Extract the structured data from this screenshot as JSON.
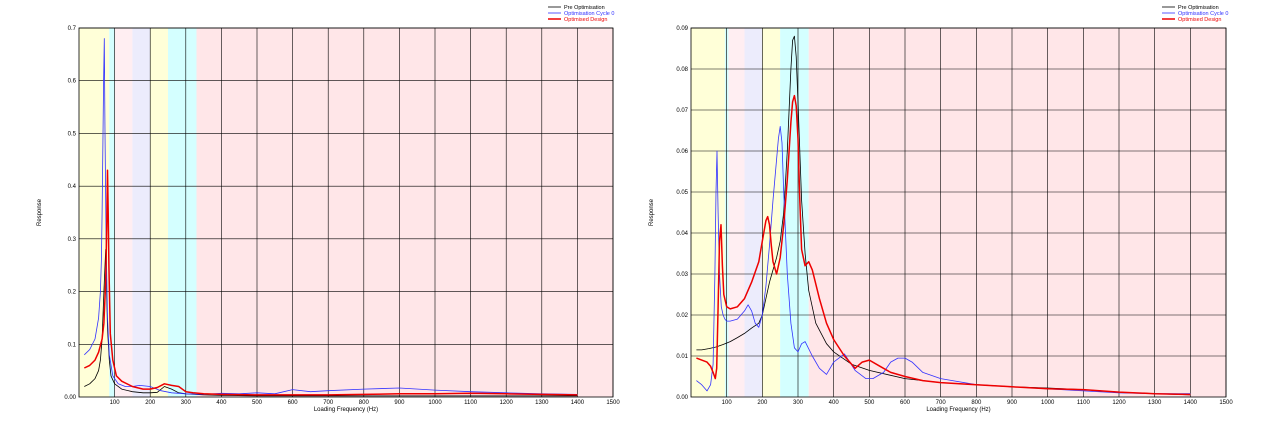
{
  "chart_data": [
    {
      "type": "line",
      "xlabel": "Loading Frequency (Hz)",
      "ylabel": "Response",
      "xlim": [
        0,
        1500
      ],
      "ylim": [
        0,
        0.7
      ],
      "xticks": [
        "100",
        "200",
        "300",
        "400",
        "500",
        "600",
        "700",
        "800",
        "900",
        "1000",
        "1100",
        "1200",
        "1300",
        "1400",
        "1500"
      ],
      "yticks": [
        "0.00",
        "0.1",
        "0.2",
        "0.3",
        "0.4",
        "0.5",
        "0.6",
        "0.7"
      ],
      "grid": true,
      "legend_position": "top-right",
      "bands": [
        {
          "from": 0,
          "to": 85,
          "color": "#ffffd8"
        },
        {
          "from": 85,
          "to": 100,
          "color": "#d4ffff"
        },
        {
          "from": 100,
          "to": 150,
          "color": "#ffeef2"
        },
        {
          "from": 150,
          "to": 200,
          "color": "#ececfc"
        },
        {
          "from": 200,
          "to": 250,
          "color": "#ffffd8"
        },
        {
          "from": 250,
          "to": 300,
          "color": "#d4ffff"
        },
        {
          "from": 300,
          "to": 330,
          "color": "#d4ffff"
        },
        {
          "from": 330,
          "to": 1500,
          "color": "#ffe6e8"
        }
      ],
      "series": [
        {
          "name": "Pre Optimisation",
          "color": "#000000",
          "width": 0.8,
          "x": [
            15,
            30,
            45,
            55,
            60,
            65,
            70,
            75,
            80,
            85,
            90,
            100,
            120,
            150,
            180,
            200,
            220,
            240,
            260,
            280,
            300,
            350,
            400,
            500,
            600,
            800,
            1000,
            1200,
            1400
          ],
          "y": [
            0.02,
            0.025,
            0.035,
            0.05,
            0.07,
            0.11,
            0.2,
            0.28,
            0.13,
            0.07,
            0.04,
            0.025,
            0.015,
            0.01,
            0.008,
            0.008,
            0.009,
            0.02,
            0.015,
            0.008,
            0.006,
            0.004,
            0.003,
            0.002,
            0.002,
            0.002,
            0.002,
            0.002,
            0.002
          ]
        },
        {
          "name": "Optimisation Cycle 0",
          "color": "#3232ff",
          "width": 0.8,
          "x": [
            15,
            30,
            45,
            55,
            60,
            63,
            65,
            67,
            69,
            71,
            73,
            76,
            80,
            85,
            95,
            110,
            130,
            150,
            170,
            200,
            230,
            260,
            300,
            350,
            400,
            450,
            500,
            550,
            600,
            650,
            700,
            800,
            900,
            1000,
            1100,
            1200,
            1300,
            1400
          ],
          "y": [
            0.08,
            0.09,
            0.11,
            0.15,
            0.2,
            0.26,
            0.35,
            0.48,
            0.6,
            0.68,
            0.5,
            0.3,
            0.15,
            0.08,
            0.04,
            0.025,
            0.02,
            0.02,
            0.022,
            0.02,
            0.012,
            0.008,
            0.006,
            0.005,
            0.007,
            0.006,
            0.008,
            0.006,
            0.014,
            0.01,
            0.012,
            0.015,
            0.017,
            0.013,
            0.01,
            0.008,
            0.006,
            0.005
          ]
        },
        {
          "name": "Optimised Design",
          "color": "#ee0000",
          "width": 1.5,
          "x": [
            15,
            30,
            45,
            55,
            65,
            70,
            75,
            78,
            80,
            82,
            84,
            88,
            95,
            105,
            120,
            150,
            180,
            200,
            220,
            240,
            260,
            280,
            300,
            320,
            350,
            400,
            500,
            600,
            700,
            800,
            900,
            1000,
            1100,
            1200,
            1300,
            1400
          ],
          "y": [
            0.055,
            0.06,
            0.07,
            0.085,
            0.11,
            0.14,
            0.22,
            0.33,
            0.43,
            0.35,
            0.25,
            0.12,
            0.07,
            0.04,
            0.03,
            0.02,
            0.015,
            0.015,
            0.018,
            0.025,
            0.022,
            0.02,
            0.01,
            0.008,
            0.006,
            0.005,
            0.004,
            0.004,
            0.004,
            0.005,
            0.006,
            0.006,
            0.007,
            0.006,
            0.005,
            0.004
          ]
        }
      ]
    },
    {
      "type": "line",
      "xlabel": "Loading Frequency (Hz)",
      "ylabel": "Response",
      "xlim": [
        0,
        1500
      ],
      "ylim": [
        0,
        0.09
      ],
      "xticks": [
        "100",
        "200",
        "300",
        "400",
        "500",
        "600",
        "700",
        "800",
        "900",
        "1000",
        "1100",
        "1200",
        "1300",
        "1400",
        "1500"
      ],
      "yticks": [
        "0.00",
        "0.01",
        "0.02",
        "0.03",
        "0.04",
        "0.05",
        "0.06",
        "0.07",
        "0.08",
        "0.09"
      ],
      "grid": true,
      "legend_position": "top-right",
      "bands": [
        {
          "from": 0,
          "to": 95,
          "color": "#ffffd8"
        },
        {
          "from": 95,
          "to": 105,
          "color": "#d4ffff"
        },
        {
          "from": 105,
          "to": 150,
          "color": "#ffeef2"
        },
        {
          "from": 150,
          "to": 200,
          "color": "#ececfc"
        },
        {
          "from": 200,
          "to": 250,
          "color": "#ffffd8"
        },
        {
          "from": 250,
          "to": 300,
          "color": "#d4ffff"
        },
        {
          "from": 300,
          "to": 330,
          "color": "#d4ffff"
        },
        {
          "from": 330,
          "to": 1500,
          "color": "#ffe6e8"
        }
      ],
      "series": [
        {
          "name": "Pre Optimisation",
          "color": "#000000",
          "width": 0.8,
          "x": [
            15,
            30,
            50,
            70,
            90,
            110,
            130,
            150,
            170,
            190,
            200,
            210,
            220,
            230,
            240,
            250,
            260,
            270,
            275,
            280,
            285,
            290,
            295,
            300,
            305,
            310,
            320,
            330,
            350,
            380,
            400,
            450,
            500,
            600,
            700,
            800,
            900,
            1000,
            1100,
            1200,
            1300,
            1400
          ],
          "y": [
            0.0115,
            0.0115,
            0.0118,
            0.0122,
            0.0128,
            0.0135,
            0.0145,
            0.0155,
            0.0168,
            0.018,
            0.02,
            0.024,
            0.028,
            0.031,
            0.034,
            0.038,
            0.045,
            0.06,
            0.07,
            0.08,
            0.087,
            0.088,
            0.083,
            0.072,
            0.06,
            0.048,
            0.035,
            0.026,
            0.018,
            0.013,
            0.011,
            0.008,
            0.0065,
            0.0045,
            0.0035,
            0.003,
            0.0025,
            0.0022,
            0.0018,
            0.0012,
            0.0008,
            0.0005
          ]
        },
        {
          "name": "Optimisation Cycle 0",
          "color": "#3232ff",
          "width": 0.8,
          "x": [
            15,
            30,
            45,
            55,
            62,
            67,
            70,
            73,
            76,
            80,
            85,
            90,
            95,
            100,
            110,
            130,
            150,
            160,
            170,
            180,
            190,
            200,
            210,
            220,
            230,
            240,
            245,
            250,
            255,
            260,
            265,
            270,
            280,
            290,
            300,
            310,
            320,
            340,
            360,
            380,
            400,
            430,
            460,
            490,
            510,
            540,
            560,
            580,
            600,
            620,
            650,
            700,
            800,
            900,
            1000,
            1100,
            1200,
            1300,
            1400
          ],
          "y": [
            0.004,
            0.003,
            0.0015,
            0.003,
            0.008,
            0.03,
            0.05,
            0.06,
            0.045,
            0.03,
            0.022,
            0.02,
            0.019,
            0.0185,
            0.0185,
            0.019,
            0.021,
            0.0225,
            0.021,
            0.018,
            0.017,
            0.02,
            0.027,
            0.037,
            0.048,
            0.058,
            0.063,
            0.066,
            0.062,
            0.05,
            0.04,
            0.03,
            0.018,
            0.012,
            0.011,
            0.013,
            0.0135,
            0.01,
            0.007,
            0.0055,
            0.0085,
            0.0105,
            0.0065,
            0.0045,
            0.0045,
            0.006,
            0.0085,
            0.0095,
            0.0095,
            0.0085,
            0.006,
            0.0045,
            0.003,
            0.0025,
            0.002,
            0.0015,
            0.001,
            0.0008,
            0.0008
          ]
        },
        {
          "name": "Optimised Design",
          "color": "#ee0000",
          "width": 1.5,
          "x": [
            15,
            30,
            45,
            55,
            62,
            68,
            72,
            76,
            80,
            84,
            88,
            92,
            100,
            110,
            130,
            150,
            170,
            190,
            200,
            210,
            215,
            220,
            225,
            230,
            240,
            250,
            260,
            270,
            280,
            285,
            290,
            295,
            300,
            305,
            310,
            320,
            330,
            340,
            360,
            380,
            400,
            430,
            460,
            480,
            500,
            530,
            560,
            600,
            650,
            700,
            800,
            900,
            1000,
            1100,
            1200,
            1300,
            1400
          ],
          "y": [
            0.0095,
            0.009,
            0.0085,
            0.0075,
            0.006,
            0.0045,
            0.007,
            0.022,
            0.038,
            0.042,
            0.032,
            0.025,
            0.022,
            0.0215,
            0.022,
            0.024,
            0.028,
            0.033,
            0.038,
            0.043,
            0.044,
            0.042,
            0.037,
            0.033,
            0.03,
            0.034,
            0.042,
            0.053,
            0.067,
            0.072,
            0.0735,
            0.071,
            0.063,
            0.048,
            0.036,
            0.032,
            0.033,
            0.031,
            0.024,
            0.018,
            0.014,
            0.01,
            0.007,
            0.0085,
            0.009,
            0.0075,
            0.006,
            0.005,
            0.004,
            0.0035,
            0.003,
            0.0025,
            0.002,
            0.0018,
            0.0012,
            0.0008,
            0.0006
          ]
        }
      ]
    }
  ]
}
